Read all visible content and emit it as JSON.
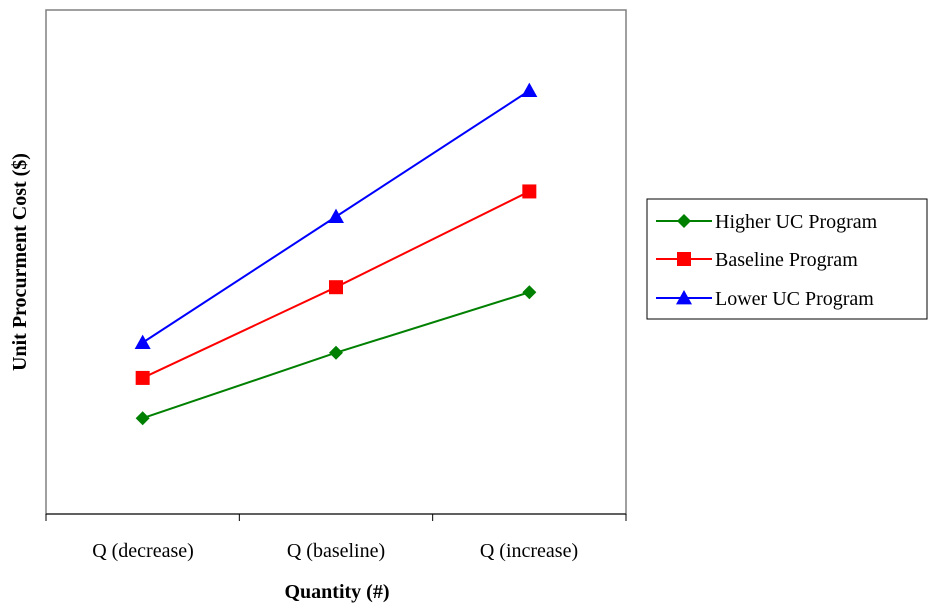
{
  "chart_data": {
    "type": "line",
    "xlabel": "Quantity (#)",
    "ylabel": "Unit Procurment Cost ($)",
    "categories": [
      "Q (decrease)",
      "Q (baseline)",
      "Q (increase)"
    ],
    "ylim": [
      0,
      100
    ],
    "grid": false,
    "legend_position": "right",
    "series": [
      {
        "name": "Higher UC Program",
        "values": [
          19,
          32,
          44
        ],
        "color": "#008000",
        "marker": "diamond"
      },
      {
        "name": "Baseline Program",
        "values": [
          27,
          45,
          64
        ],
        "color": "#ff0000",
        "marker": "square"
      },
      {
        "name": "Lower UC Program",
        "values": [
          34,
          59,
          84
        ],
        "color": "#0000ff",
        "marker": "triangle"
      }
    ]
  }
}
